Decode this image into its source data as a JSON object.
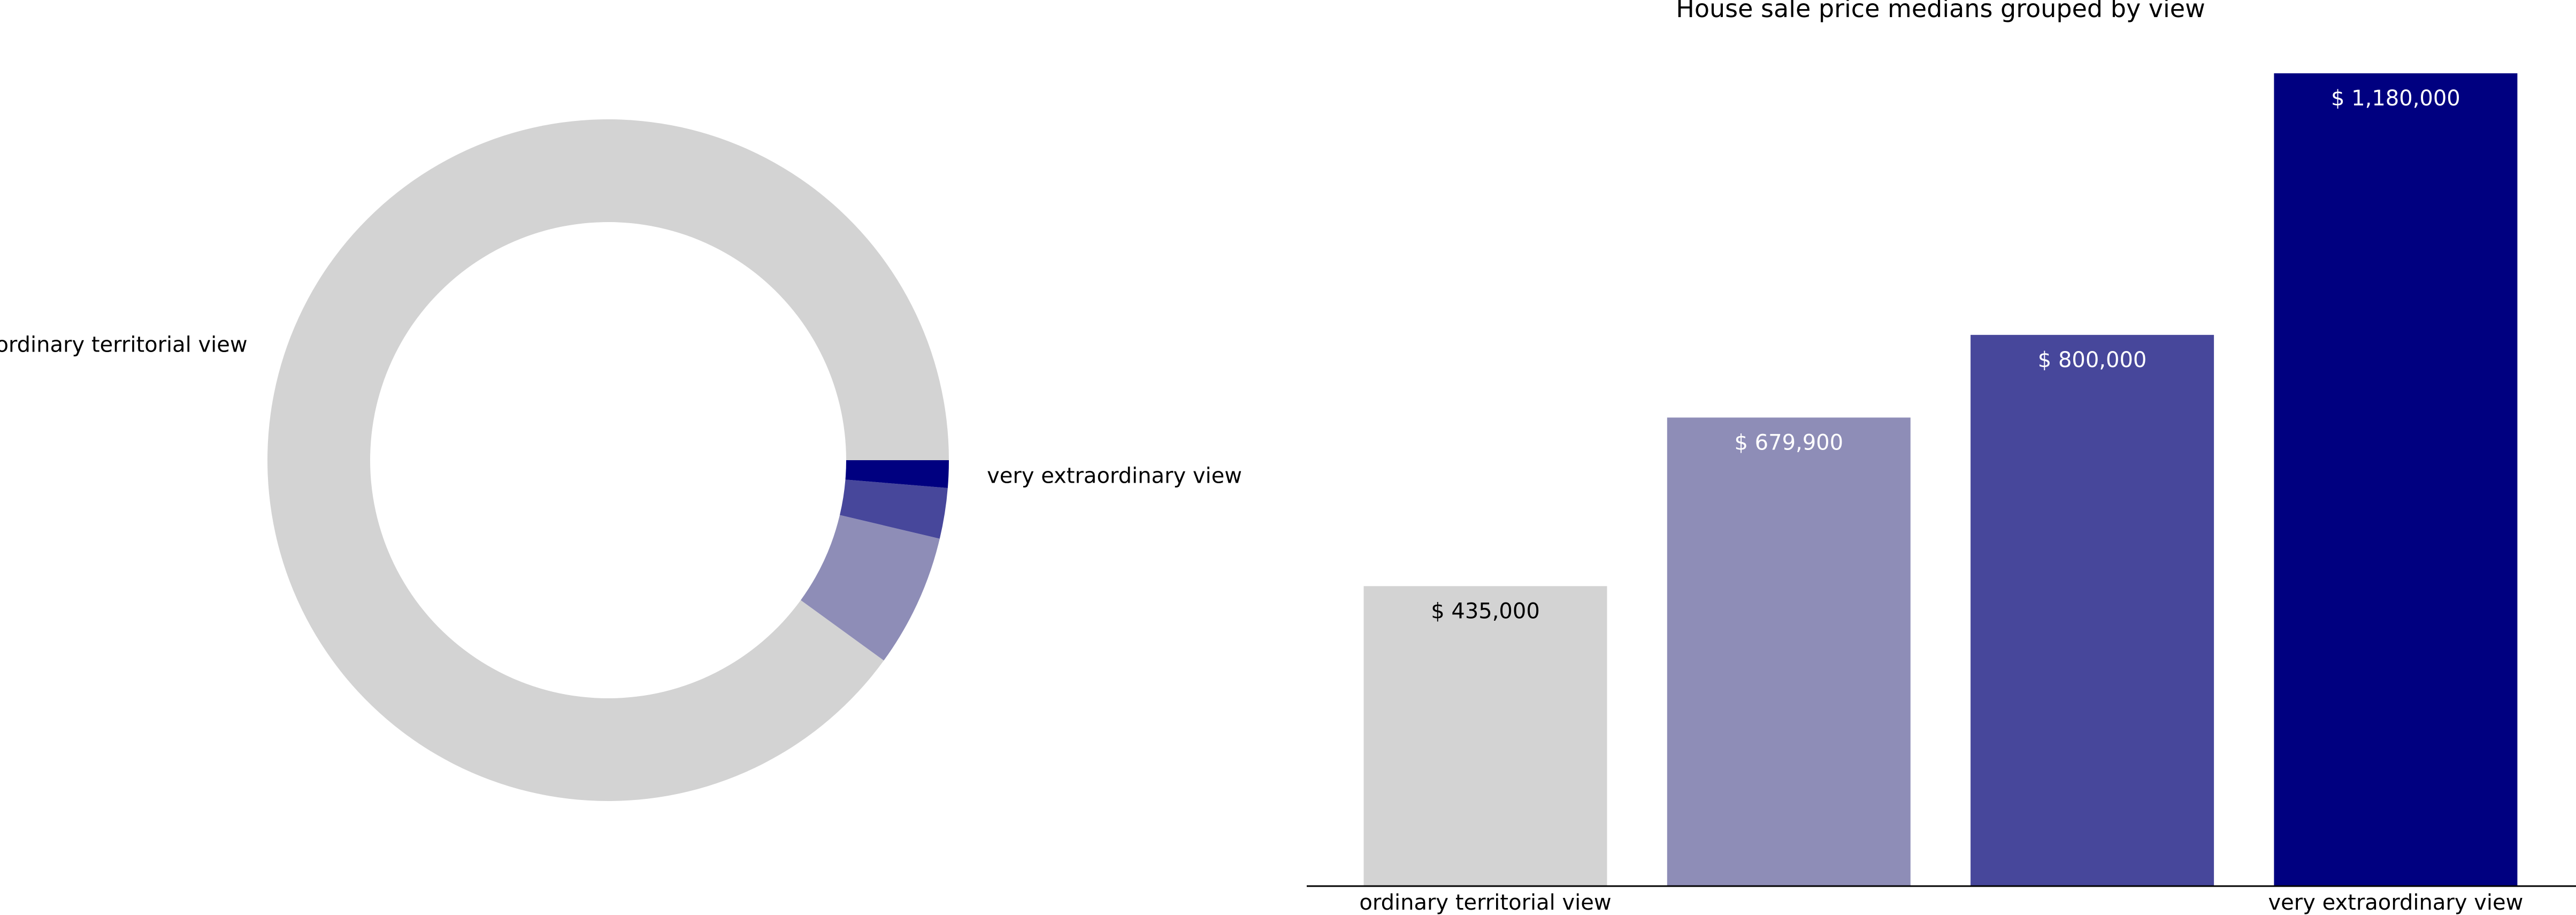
{
  "chart_data": [
    {
      "type": "pie",
      "donut": true,
      "title": "",
      "slices": [
        {
          "label": "ordinary territorial view",
          "value": 90.0,
          "color": "#d3d3d3"
        },
        {
          "label": "",
          "value": 6.3,
          "color": "#8e8db7"
        },
        {
          "label": "",
          "value": 2.4,
          "color": "#47479b"
        },
        {
          "label": "very extraordinary view",
          "value": 1.3,
          "color": "#000080"
        }
      ],
      "start_angle_deg": 0,
      "direction": "counterclockwise"
    },
    {
      "type": "bar",
      "title": "House sale price medians grouped by view",
      "categories": [
        "ordinary territorial view",
        "",
        "",
        "very extraordinary view"
      ],
      "values": [
        435000,
        679900,
        800000,
        1180000
      ],
      "value_labels": [
        "$ 435,000",
        "$ 679,900",
        "$ 800,000",
        "$ 1,180,000"
      ],
      "colors": [
        "#d3d3d3",
        "#8e8db7",
        "#47479b",
        "#000080"
      ],
      "label_colors": [
        "#000000",
        "#ffffff",
        "#ffffff",
        "#ffffff"
      ],
      "ylim": [
        0,
        1180000
      ],
      "xlabel": "",
      "ylabel": "",
      "grid": false,
      "y_axis_visible": false
    }
  ]
}
